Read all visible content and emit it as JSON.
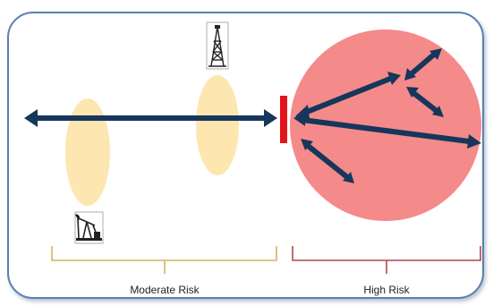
{
  "labels": {
    "moderate_risk": "Moderate Risk",
    "high_risk": "High Risk"
  },
  "icons": {
    "drilling_rig": "oil-derrick-icon",
    "pump_jack": "pump-jack-icon"
  },
  "colors": {
    "frame_border": "#5a7fb0",
    "arrow": "#16365c",
    "barrier": "#e3131b",
    "high_risk_zone": "#f58a8a",
    "moderate_zone": "#fde3a7",
    "moderate_bracket": "#d6b45c",
    "high_bracket": "#b0474b"
  }
}
